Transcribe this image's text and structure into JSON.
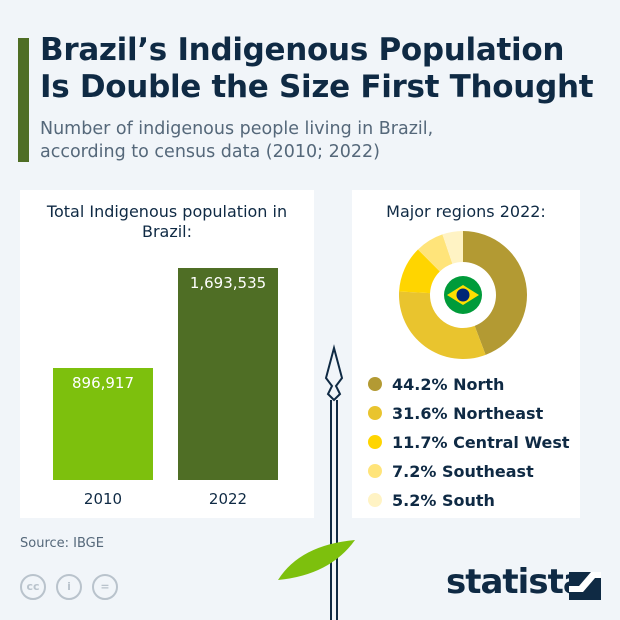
{
  "header": {
    "title_line1": "Brazil’s Indigenous Population",
    "title_line2": "Is Double the Size First Thought",
    "subtitle_line1": "Number of indigenous people living in Brazil,",
    "subtitle_line2": "according to census data (2010; 2022)"
  },
  "chart_data": [
    {
      "type": "bar",
      "title": "Total Indigenous population in Brazil:",
      "categories": [
        "2010",
        "2022"
      ],
      "values": [
        896917,
        1693535
      ],
      "value_labels": [
        "896,917",
        "1,693,535"
      ],
      "colors": [
        "#7dc00d",
        "#4f6e25"
      ]
    },
    {
      "type": "pie",
      "title": "Major regions 2022:",
      "categories": [
        "North",
        "Northeast",
        "Central West",
        "Southeast",
        "South"
      ],
      "values": [
        44.2,
        31.6,
        11.7,
        7.2,
        5.2
      ],
      "labels": [
        "44.2% North",
        "31.6% Northeast",
        "11.7% Central West",
        "7.2% Southeast",
        "5.2% South"
      ],
      "colors": [
        "#b39a33",
        "#e9c42e",
        "#ffd500",
        "#ffe47a",
        "#fff3c4"
      ],
      "donut": true,
      "center_icon": "brazil-flag"
    }
  ],
  "footer": {
    "source": "Source: IBGE",
    "logo": "statista",
    "license_icons": [
      "cc-icon",
      "person-icon",
      "equals-icon"
    ]
  }
}
